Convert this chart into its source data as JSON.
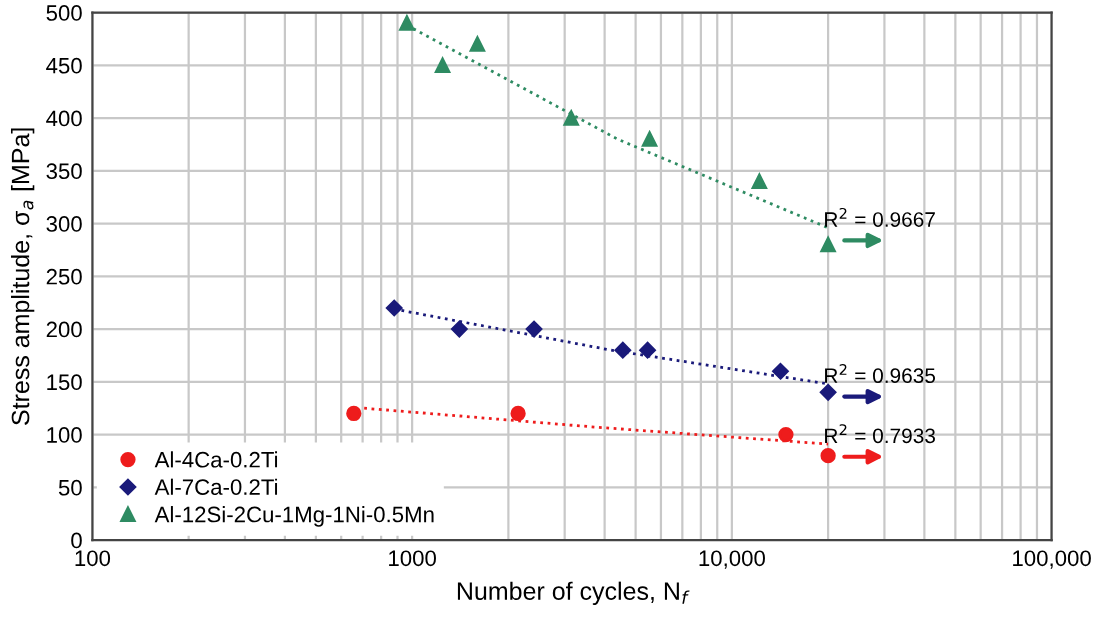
{
  "chart_data": {
    "type": "scatter",
    "xlabel": "Number of cycles, N$_{f}$",
    "ylabel": "Stress amplitude, σ$_{a}$ [MPa]",
    "log": "x",
    "xlim": [
      100,
      100000
    ],
    "xticks": [
      100,
      1000,
      {
        "value": 10000,
        "label": "10,000"
      },
      {
        "value": 100000,
        "label": "100,000"
      }
    ],
    "ylim": [
      0,
      500
    ],
    "yticks": [
      0,
      50,
      100,
      150,
      200,
      250,
      300,
      350,
      400,
      450,
      500
    ],
    "grid": true,
    "legend": "bottom left",
    "series": [
      {
        "name": "Al-4Ca-0.2Ti",
        "color": "#ee1c1c",
        "marker": "circle",
        "x": [
          657,
          2145,
          14760,
          20000
        ],
        "values": [
          120,
          120,
          100,
          80
        ]
      },
      {
        "name": "Al-7Ca-0.2Ti",
        "color": "#1a1a7a",
        "marker": "diamond",
        "x": [
          879,
          1405,
          2406,
          4560,
          5450,
          14190,
          20000
        ],
        "values": [
          220,
          200,
          200,
          180,
          180,
          160,
          140
        ]
      },
      {
        "name": "Al-12Si-2Cu-1Mg-1Ni-0.5Mn",
        "color": "#2e8b62",
        "marker": "triangle",
        "x": [
          963,
          1245,
          1600,
          3145,
          5530,
          12190,
          20000
        ],
        "values": [
          490,
          450,
          470,
          400,
          380,
          340,
          280
        ]
      },
      {
        "type": "line",
        "color": "#2e8b62",
        "line_style": "dotted",
        "x": [
          963,
          4389,
          20000
        ],
        "values": [
          488,
          380,
          296
        ]
      },
      {
        "type": "line",
        "color": "#1a1a7a",
        "line_style": "dotted",
        "x": [
          879,
          4193,
          20000
        ],
        "values": [
          219,
          180,
          148
        ]
      },
      {
        "type": "line",
        "color": "#ee1c1c",
        "line_style": "dotted",
        "x": [
          708,
          3763,
          20000
        ],
        "values": [
          125,
          107,
          91
        ]
      }
    ],
    "annotations": [
      "R$^{2}$ = 0.9667",
      "R$^{2}$ = 0.9635",
      "R$^{2}$ = 0.7933"
    ]
  }
}
